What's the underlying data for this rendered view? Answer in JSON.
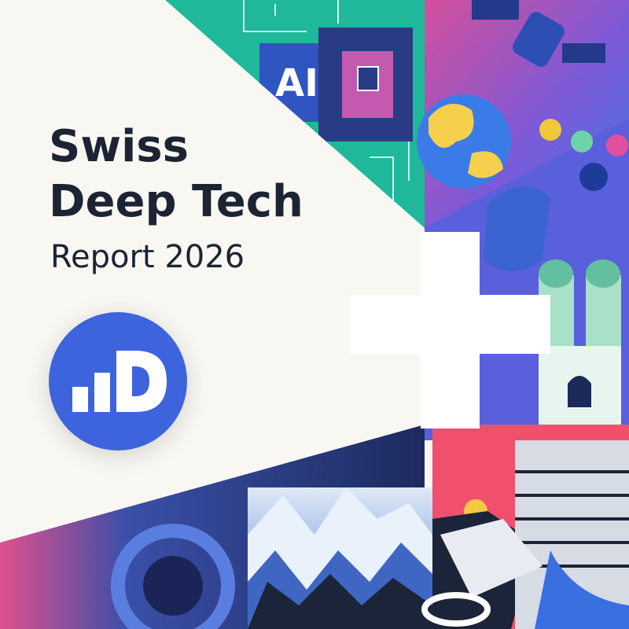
{
  "header": {
    "title_line1": "Swiss",
    "title_line2": "Deep Tech",
    "subtitle": "Report 2026"
  },
  "illustration": {
    "server_label": "AI"
  }
}
